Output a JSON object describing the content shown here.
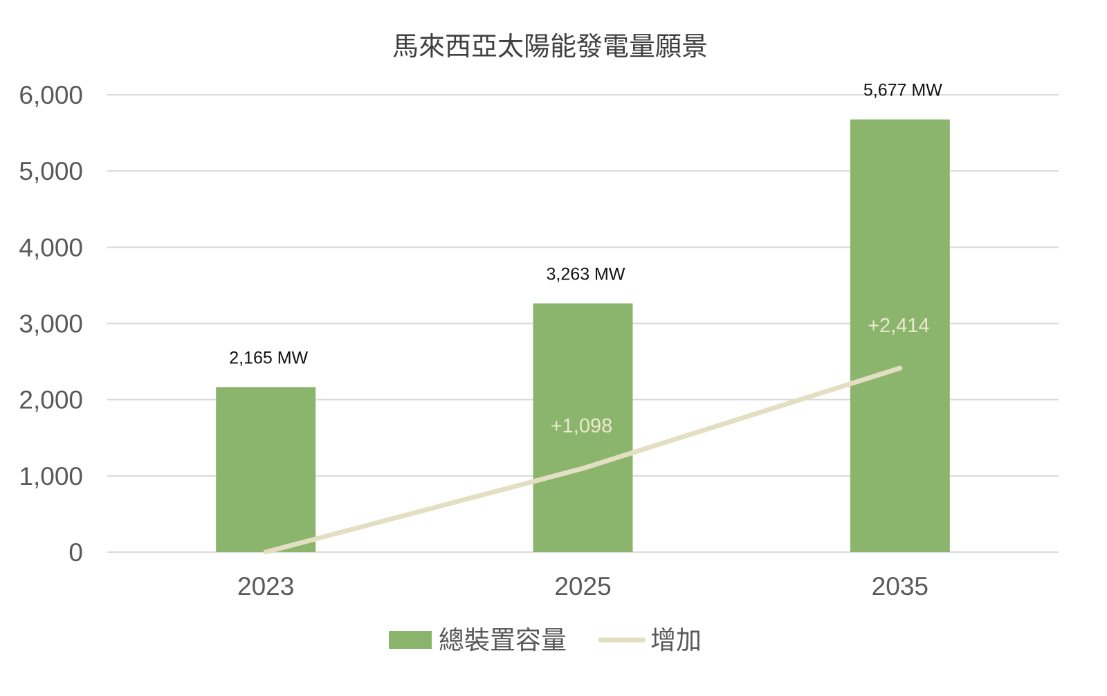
{
  "chart_data": {
    "type": "bar",
    "title": "馬來西亞太陽能發電量願景",
    "categories": [
      "2023",
      "2025",
      "2035"
    ],
    "ylim": [
      0,
      6000
    ],
    "yticks": [
      0,
      1000,
      2000,
      3000,
      4000,
      5000,
      6000
    ],
    "ytick_labels": [
      "0",
      "1,000",
      "2,000",
      "3,000",
      "4,000",
      "5,000",
      "6,000"
    ],
    "grid": true,
    "legend_position": "bottom",
    "series": [
      {
        "name": "總裝置容量",
        "kind": "bar",
        "color": "#8bb56d",
        "values": [
          2165,
          3263,
          5677
        ],
        "labels": [
          "2,165 MW",
          "3,263 MW",
          "5,677 MW"
        ]
      },
      {
        "name": "增加",
        "kind": "line",
        "color": "#e3dfc2",
        "values": [
          0,
          1098,
          2414
        ],
        "labels": [
          "",
          "+1,098",
          "+2,414"
        ]
      }
    ]
  }
}
